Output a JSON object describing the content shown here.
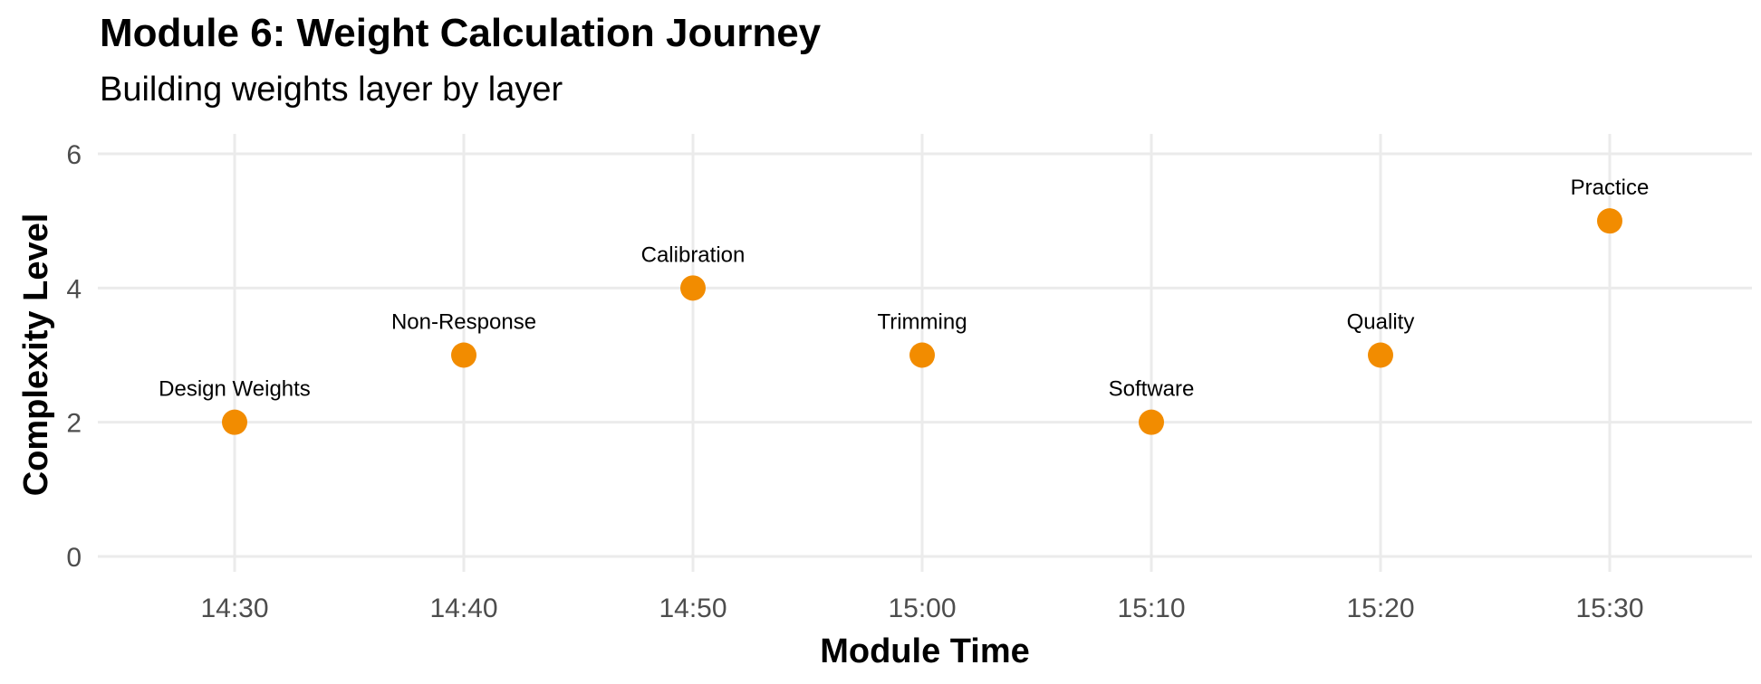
{
  "title": "Module 6: Weight Calculation Journey",
  "subtitle": "Building weights layer by layer",
  "chart_data": {
    "type": "scatter",
    "title": "Module 6: Weight Calculation Journey",
    "subtitle": "Building weights layer by layer",
    "xlabel": "Module Time",
    "ylabel": "Complexity Level",
    "x_ticks": [
      "14:30",
      "14:40",
      "14:50",
      "15:00",
      "15:10",
      "15:20",
      "15:30"
    ],
    "y_ticks": [
      0,
      2,
      4,
      6
    ],
    "ylim": [
      0,
      6
    ],
    "grid": true,
    "legend": "none",
    "point_color": "#F28C00",
    "points": [
      {
        "x": "14:30",
        "y": 2,
        "label": "Design Weights"
      },
      {
        "x": "14:40",
        "y": 3,
        "label": "Non-Response"
      },
      {
        "x": "14:50",
        "y": 4,
        "label": "Calibration"
      },
      {
        "x": "15:00",
        "y": 3,
        "label": "Trimming"
      },
      {
        "x": "15:10",
        "y": 2,
        "label": "Software"
      },
      {
        "x": "15:20",
        "y": 3,
        "label": "Quality"
      },
      {
        "x": "15:30",
        "y": 5,
        "label": "Practice"
      }
    ]
  }
}
